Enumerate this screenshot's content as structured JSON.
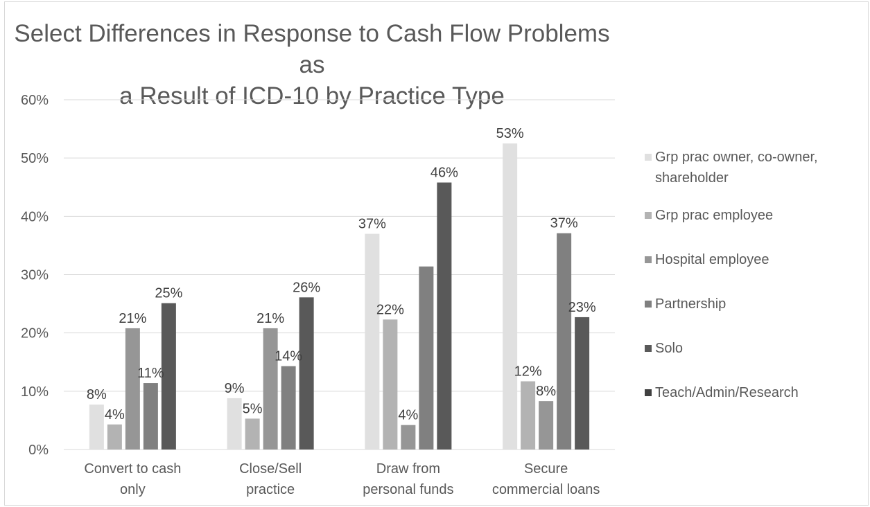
{
  "chart_data": {
    "type": "bar",
    "title": "Select Differences in Response to Cash Flow Problems as\na Result of ICD-10 by Practice Type",
    "xlabel": "",
    "ylabel": "",
    "ylim": [
      0,
      60
    ],
    "yticks": [
      "0%",
      "10%",
      "20%",
      "30%",
      "40%",
      "50%",
      "60%"
    ],
    "categories": [
      "Convert to cash\nonly",
      "Close/Sell\npractice",
      "Draw from\npersonal funds",
      "Secure\ncommercial loans"
    ],
    "grid": true,
    "legend_position": "right",
    "series": [
      {
        "name": "Grp prac owner, co-owner,\nshareholder",
        "color": "#e0e0e0",
        "values": [
          7.7,
          8.8,
          37,
          52.5
        ],
        "labels": [
          "8%",
          "9%",
          "37%",
          "53%"
        ]
      },
      {
        "name": "Grp prac employee",
        "color": "#b3b3b3",
        "values": [
          4.3,
          5.3,
          22.3,
          11.7
        ],
        "labels": [
          "4%",
          "5%",
          "22%",
          "12%"
        ]
      },
      {
        "name": "Hospital employee",
        "color": "#969696",
        "values": [
          20.8,
          20.8,
          4.2,
          8.3
        ],
        "labels": [
          "21%",
          "21%",
          "4%",
          "8%"
        ]
      },
      {
        "name": "Partnership",
        "color": "#808080",
        "values": [
          11.4,
          14.3,
          31.4,
          37.1
        ],
        "labels": [
          "11%",
          "14%",
          "",
          "37%"
        ]
      },
      {
        "name": "Solo",
        "color": "#595959",
        "values": [
          25.1,
          26.1,
          45.8,
          22.7
        ],
        "labels": [
          "25%",
          "26%",
          "46%",
          "23%"
        ]
      },
      {
        "name": "Teach/Admin/Research",
        "color": "#404040",
        "values": [
          0,
          0,
          0,
          0
        ],
        "labels": [
          "",
          "",
          "",
          ""
        ]
      }
    ]
  }
}
